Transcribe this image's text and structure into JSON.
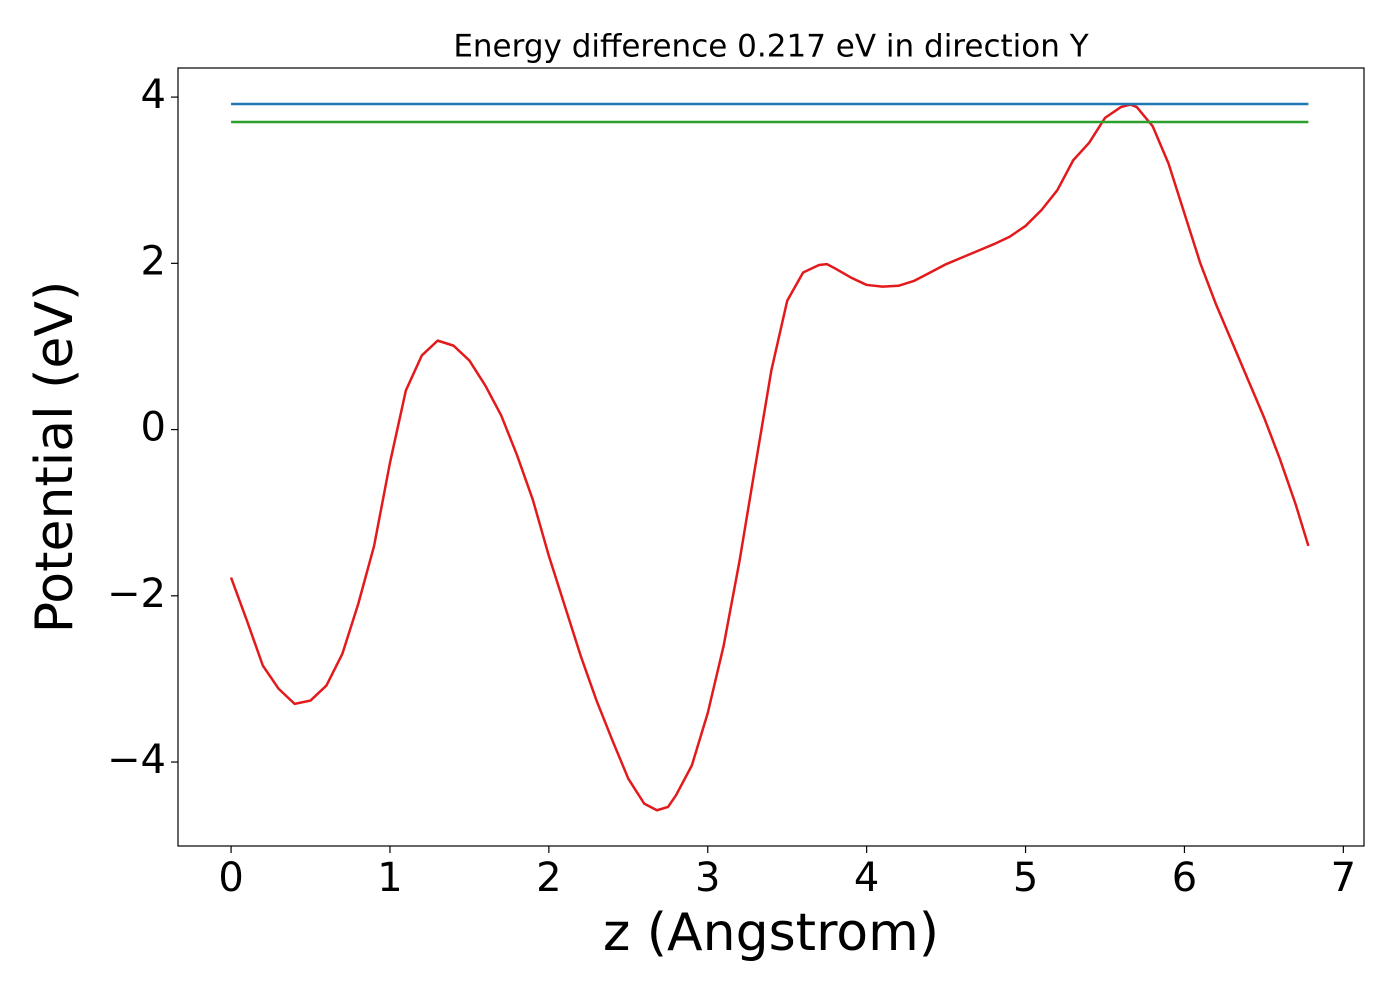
{
  "chart_data": {
    "type": "line",
    "title": "Energy difference 0.217 eV in direction Y",
    "x_label": "z (Angstrom)",
    "y_label": "Potential (eV)",
    "xlim": [
      -0.334,
      7.13
    ],
    "ylim": [
      -5.01,
      4.35
    ],
    "xticks": [
      0,
      1,
      2,
      3,
      4,
      5,
      6,
      7
    ],
    "yticks": [
      {
        "value": -4,
        "label": "−4"
      },
      {
        "value": -2,
        "label": "−2"
      },
      0,
      2,
      4
    ],
    "series": [
      {
        "color": "#e31a1c",
        "x": [
          0,
          0.1,
          0.2,
          0.3,
          0.4,
          0.5,
          0.6,
          0.7,
          0.8,
          0.9,
          1.0,
          1.1,
          1.2,
          1.3,
          1.4,
          1.5,
          1.6,
          1.7,
          1.8,
          1.9,
          2.0,
          2.1,
          2.2,
          2.3,
          2.4,
          2.5,
          2.6,
          2.68,
          2.75,
          2.8,
          2.9,
          3.0,
          3.1,
          3.2,
          3.3,
          3.4,
          3.5,
          3.6,
          3.7,
          3.75,
          3.8,
          3.9,
          4.0,
          4.1,
          4.2,
          4.3,
          4.4,
          4.5,
          4.6,
          4.7,
          4.8,
          4.9,
          5.0,
          5.1,
          5.2,
          5.3,
          5.4,
          5.5,
          5.6,
          5.66,
          5.7,
          5.8,
          5.9,
          6.0,
          6.1,
          6.2,
          6.3,
          6.4,
          6.5,
          6.6,
          6.7,
          6.78
        ],
        "values": [
          -1.78,
          -2.3,
          -2.84,
          -3.12,
          -3.3,
          -3.26,
          -3.08,
          -2.7,
          -2.1,
          -1.4,
          -0.4,
          0.47,
          0.89,
          1.07,
          1.01,
          0.83,
          0.53,
          0.17,
          -0.31,
          -0.85,
          -1.52,
          -2.12,
          -2.72,
          -3.26,
          -3.74,
          -4.2,
          -4.5,
          -4.58,
          -4.54,
          -4.4,
          -4.04,
          -3.41,
          -2.6,
          -1.58,
          -0.43,
          0.71,
          1.55,
          1.89,
          1.98,
          1.99,
          1.94,
          1.83,
          1.74,
          1.72,
          1.73,
          1.79,
          1.89,
          1.99,
          2.07,
          2.15,
          2.23,
          2.32,
          2.45,
          2.64,
          2.88,
          3.24,
          3.45,
          3.75,
          3.88,
          3.91,
          3.88,
          3.65,
          3.2,
          2.6,
          2.0,
          1.5,
          1.05,
          0.6,
          0.15,
          -0.35,
          -0.9,
          -1.4
        ]
      },
      {
        "color": "#1f77b4",
        "x": [
          0,
          6.78
        ],
        "values": [
          3.917,
          3.917
        ]
      },
      {
        "color": "#2ca02c",
        "x": [
          0,
          6.78
        ],
        "values": [
          3.7,
          3.7
        ]
      }
    ]
  }
}
